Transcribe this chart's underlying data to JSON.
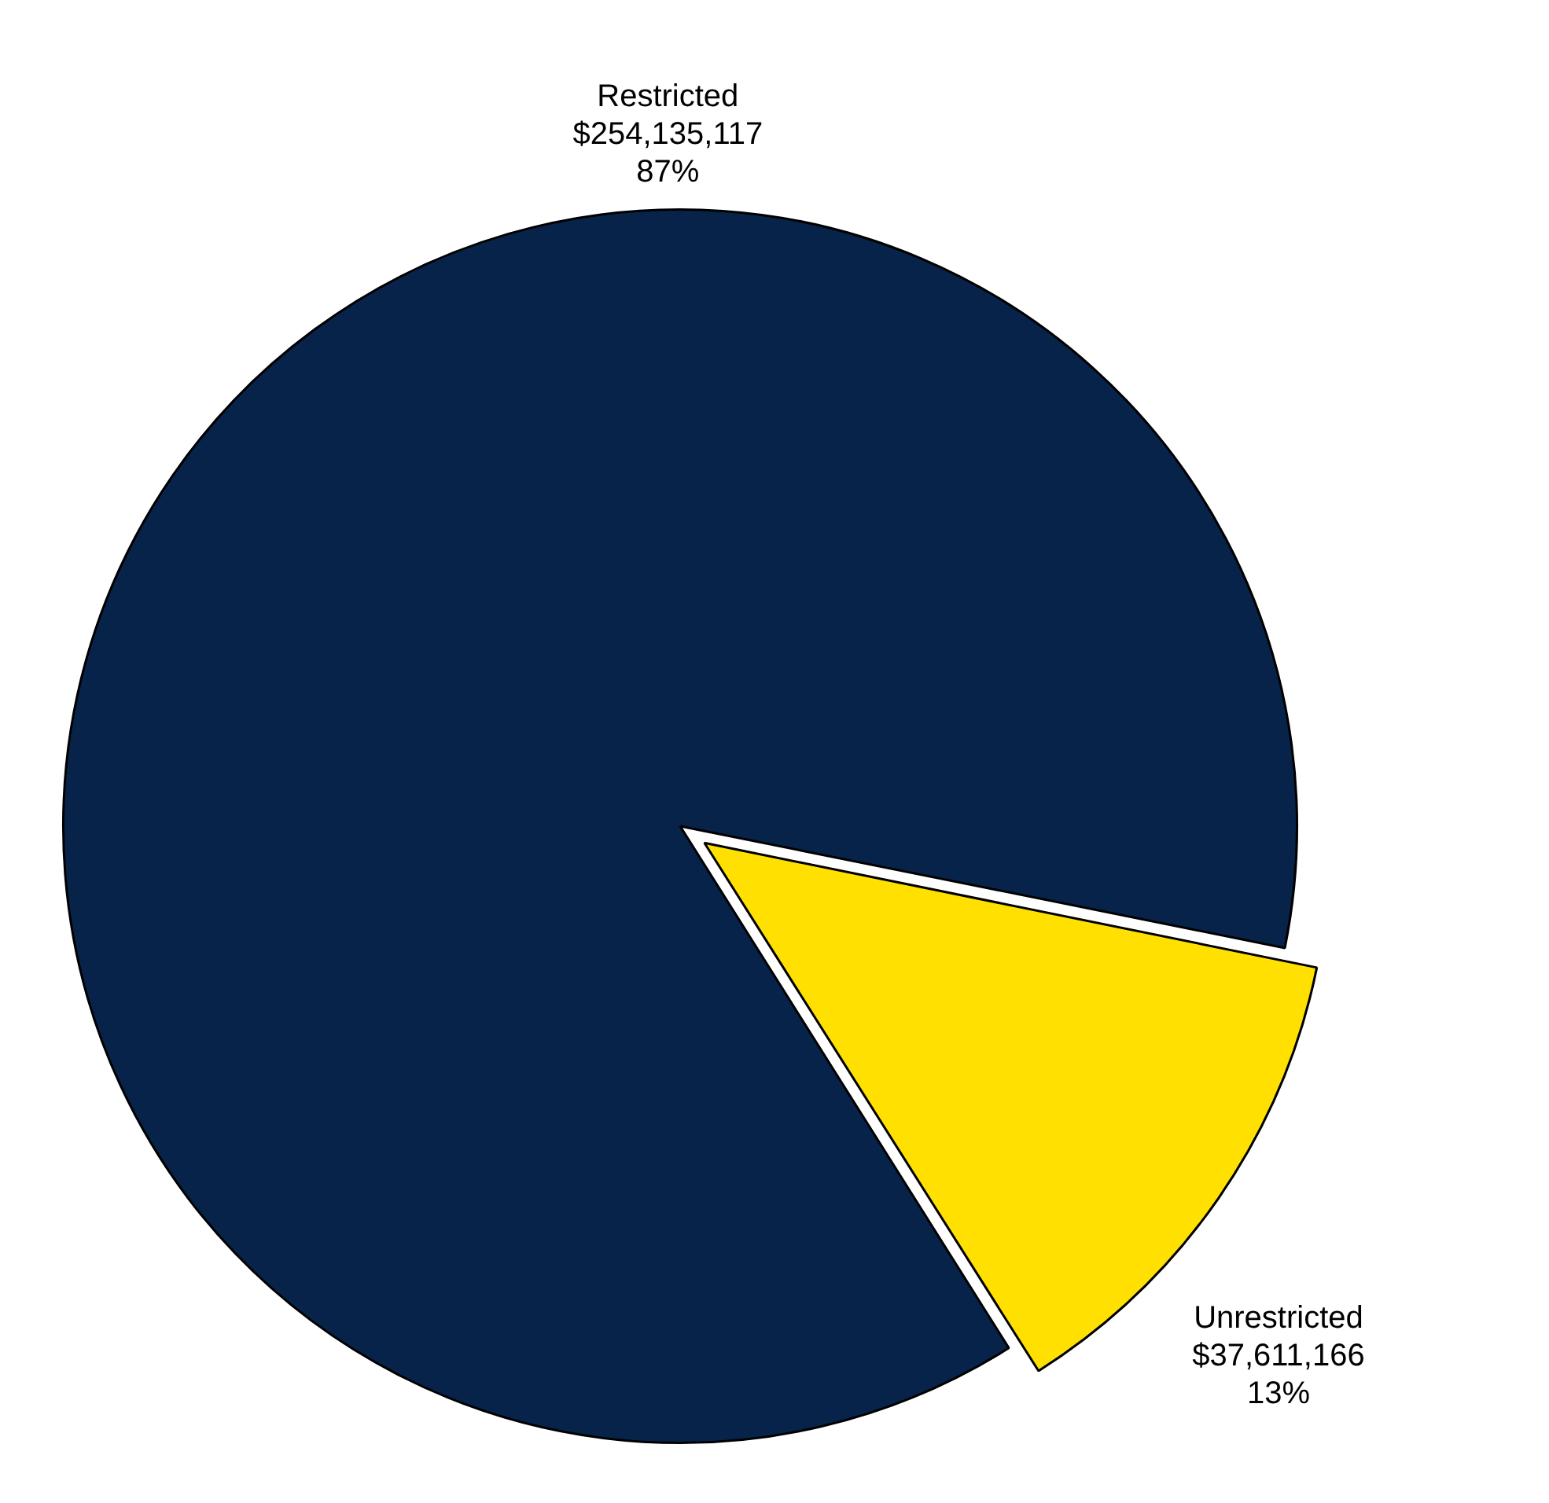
{
  "chart_data": {
    "type": "pie",
    "categories": [
      "Restricted",
      "Unrestricted"
    ],
    "values": [
      254135117,
      37611166
    ],
    "colors": [
      "#082349",
      "#ffe000"
    ],
    "value_labels": [
      "$254,135,117\n87%",
      "$37,611,166\n13%"
    ],
    "legend": false
  }
}
